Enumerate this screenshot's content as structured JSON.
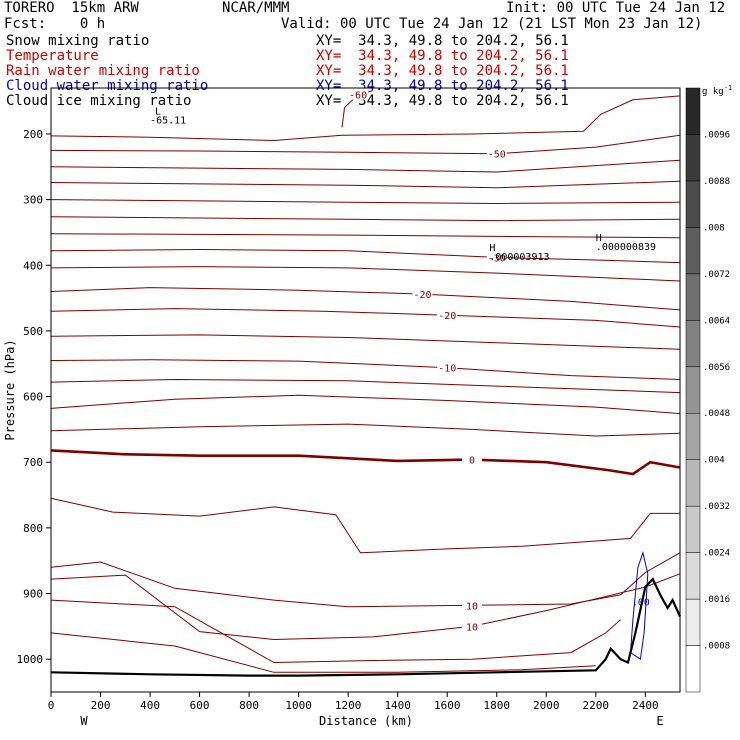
{
  "header": {
    "model": "TORERO  15km ARW",
    "org": "NCAR/MMM",
    "init": "Init: 00 UTC Tue 24 Jan 12",
    "fcst": "Fcst:    0 h",
    "valid": "Valid: 00 UTC Tue 24 Jan 12 (21 LST Mon 23 Jan 12)"
  },
  "fields": [
    {
      "name": "Snow mixing ratio",
      "xy": "XY=  34.3, 49.8 to 204.2, 56.1",
      "color": "#000000"
    },
    {
      "name": "Temperature",
      "xy": "XY=  34.3, 49.8 to 204.2, 56.1",
      "color": "#cc0000"
    },
    {
      "name": "Rain water mixing ratio",
      "xy": "XY=  34.3, 49.8 to 204.2, 56.1",
      "color": "#cc0000"
    },
    {
      "name": "Cloud water mixing ratio",
      "xy": "XY=  34.3, 49.8 to 204.2, 56.1",
      "color": "#0000aa"
    },
    {
      "name": "Cloud ice mixing ratio",
      "xy": "XY=  34.3, 49.8 to 204.2, 56.1",
      "color": "#000000"
    }
  ],
  "colorbar": {
    "unit": "g kg",
    "unit_exp": "-1",
    "labels": [
      ".0008",
      ".0016",
      ".0024",
      ".0032",
      ".004",
      ".0048",
      ".0056",
      ".0064",
      ".0072",
      ".008",
      ".0088",
      ".0096"
    ]
  },
  "chart_data": {
    "type": "contour",
    "xlabel": "Distance (km)",
    "ylabel": "Pressure (hPa)",
    "xlim": [
      0,
      2540
    ],
    "ylim": [
      1050,
      130
    ],
    "x_ticks": [
      0,
      200,
      400,
      600,
      800,
      1000,
      1200,
      1400,
      1600,
      1800,
      2000,
      2200,
      2400
    ],
    "y_ticks": [
      200,
      300,
      400,
      500,
      600,
      700,
      800,
      900,
      1000
    ],
    "x_end_labels": {
      "left": "W",
      "right": "E"
    },
    "temperature_contours": [
      {
        "label": "-60",
        "points": [
          [
            1175,
            190
          ],
          [
            1185,
            160
          ],
          [
            1240,
            140
          ],
          [
            1300,
            134
          ]
        ]
      },
      {
        "label": "",
        "points": [
          [
            0,
            203
          ],
          [
            400,
            205
          ],
          [
            900,
            210
          ],
          [
            1175,
            202
          ],
          [
            1700,
            200
          ],
          [
            2150,
            196
          ],
          [
            2220,
            170
          ],
          [
            2350,
            148
          ],
          [
            2540,
            142
          ]
        ]
      },
      {
        "label": "-50",
        "points": [
          [
            0,
            225
          ],
          [
            600,
            226
          ],
          [
            1200,
            228
          ],
          [
            1800,
            230
          ],
          [
            2200,
            220
          ],
          [
            2540,
            202
          ]
        ]
      },
      {
        "label": "",
        "points": [
          [
            0,
            250
          ],
          [
            600,
            252
          ],
          [
            1200,
            254
          ],
          [
            1800,
            258
          ],
          [
            2540,
            240
          ]
        ]
      },
      {
        "label": "",
        "points": [
          [
            0,
            274
          ],
          [
            600,
            276
          ],
          [
            1200,
            278
          ],
          [
            1800,
            282
          ],
          [
            2540,
            272
          ]
        ]
      },
      {
        "label": "",
        "points": [
          [
            0,
            300
          ],
          [
            600,
            302
          ],
          [
            1200,
            304
          ],
          [
            1800,
            306
          ],
          [
            2540,
            304
          ]
        ]
      },
      {
        "label": "",
        "points": [
          [
            0,
            326
          ],
          [
            600,
            328
          ],
          [
            1200,
            330
          ],
          [
            1800,
            332
          ],
          [
            2540,
            330
          ]
        ]
      },
      {
        "label": "",
        "points": [
          [
            0,
            352
          ],
          [
            600,
            353
          ],
          [
            1200,
            354
          ],
          [
            1800,
            356
          ],
          [
            2540,
            358
          ]
        ]
      },
      {
        "label": "-30",
        "points": [
          [
            0,
            378
          ],
          [
            600,
            376
          ],
          [
            1200,
            378
          ],
          [
            1800,
            388
          ],
          [
            2200,
            392
          ],
          [
            2540,
            396
          ]
        ]
      },
      {
        "label": "",
        "points": [
          [
            0,
            404
          ],
          [
            600,
            402
          ],
          [
            1200,
            404
          ],
          [
            1800,
            412
          ],
          [
            2540,
            424
          ]
        ]
      },
      {
        "label": "-20",
        "points": [
          [
            0,
            440
          ],
          [
            400,
            434
          ],
          [
            1000,
            438
          ],
          [
            1500,
            444
          ],
          [
            2100,
            455
          ],
          [
            2540,
            468
          ]
        ]
      },
      {
        "label": "-20",
        "points": [
          [
            0,
            470
          ],
          [
            500,
            466
          ],
          [
            1100,
            470
          ],
          [
            1600,
            476
          ],
          [
            2200,
            484
          ],
          [
            2540,
            494
          ]
        ]
      },
      {
        "label": "",
        "points": [
          [
            0,
            508
          ],
          [
            600,
            506
          ],
          [
            1200,
            510
          ],
          [
            1800,
            518
          ],
          [
            2540,
            528
          ]
        ]
      },
      {
        "label": "-10",
        "points": [
          [
            0,
            545
          ],
          [
            400,
            544
          ],
          [
            1000,
            546
          ],
          [
            1600,
            556
          ],
          [
            2100,
            568
          ],
          [
            2540,
            574
          ]
        ]
      },
      {
        "label": "",
        "points": [
          [
            0,
            578
          ],
          [
            500,
            574
          ],
          [
            1200,
            576
          ],
          [
            1800,
            584
          ],
          [
            2540,
            594
          ]
        ]
      },
      {
        "label": "",
        "points": [
          [
            0,
            618
          ],
          [
            500,
            604
          ],
          [
            1000,
            598
          ],
          [
            1600,
            606
          ],
          [
            2200,
            616
          ],
          [
            2540,
            626
          ]
        ]
      },
      {
        "label": "",
        "points": [
          [
            0,
            652
          ],
          [
            600,
            646
          ],
          [
            1200,
            642
          ],
          [
            1700,
            650
          ],
          [
            2200,
            660
          ],
          [
            2540,
            656
          ]
        ]
      },
      {
        "label": "0",
        "heavy": true,
        "points": [
          [
            0,
            682
          ],
          [
            300,
            688
          ],
          [
            600,
            690
          ],
          [
            1000,
            690
          ],
          [
            1400,
            698
          ],
          [
            1700,
            696
          ],
          [
            2000,
            700
          ],
          [
            2250,
            712
          ],
          [
            2350,
            718
          ],
          [
            2420,
            700
          ],
          [
            2540,
            708
          ]
        ]
      },
      {
        "label": "",
        "points": [
          [
            0,
            755
          ],
          [
            250,
            776
          ],
          [
            600,
            782
          ],
          [
            900,
            768
          ],
          [
            1150,
            780
          ],
          [
            1250,
            838
          ],
          [
            1600,
            832
          ],
          [
            1900,
            828
          ],
          [
            2200,
            820
          ],
          [
            2340,
            816
          ],
          [
            2420,
            778
          ],
          [
            2540,
            778
          ]
        ]
      },
      {
        "label": "10",
        "points": [
          [
            0,
            860
          ],
          [
            200,
            852
          ],
          [
            500,
            892
          ],
          [
            900,
            910
          ],
          [
            1200,
            920
          ],
          [
            1700,
            918
          ],
          [
            2100,
            916
          ],
          [
            2300,
            902
          ],
          [
            2400,
            868
          ],
          [
            2540,
            838
          ]
        ]
      },
      {
        "label": "10",
        "points": [
          [
            0,
            878
          ],
          [
            300,
            872
          ],
          [
            600,
            958
          ],
          [
            900,
            970
          ],
          [
            1300,
            966
          ],
          [
            1700,
            950
          ],
          [
            2000,
            926
          ],
          [
            2200,
            908
          ],
          [
            2400,
            890
          ],
          [
            2540,
            870
          ]
        ]
      },
      {
        "label": "",
        "points": [
          [
            0,
            910
          ],
          [
            500,
            920
          ],
          [
            900,
            1005
          ],
          [
            1300,
            1002
          ],
          [
            1700,
            1000
          ],
          [
            2100,
            990
          ],
          [
            2240,
            960
          ],
          [
            2300,
            940
          ]
        ]
      },
      {
        "label": "",
        "points": [
          [
            0,
            960
          ],
          [
            500,
            980
          ],
          [
            900,
            1020
          ],
          [
            1400,
            1020
          ],
          [
            1900,
            1016
          ],
          [
            2200,
            1010
          ]
        ]
      }
    ],
    "terrain": {
      "points": [
        [
          0,
          1020
        ],
        [
          400,
          1023
        ],
        [
          800,
          1025
        ],
        [
          1000,
          1025
        ],
        [
          1400,
          1023
        ],
        [
          1800,
          1020
        ],
        [
          2200,
          1017
        ],
        [
          2240,
          1000
        ],
        [
          2260,
          984
        ],
        [
          2300,
          1000
        ],
        [
          2330,
          1005
        ],
        [
          2360,
          960
        ],
        [
          2400,
          890
        ],
        [
          2430,
          878
        ],
        [
          2460,
          902
        ],
        [
          2490,
          922
        ],
        [
          2510,
          910
        ],
        [
          2540,
          935
        ]
      ]
    },
    "cloud_water_contour": {
      "label": ".00",
      "points": [
        [
          2340,
          990
        ],
        [
          2350,
          940
        ],
        [
          2370,
          860
        ],
        [
          2390,
          838
        ],
        [
          2410,
          870
        ],
        [
          2395,
          960
        ],
        [
          2380,
          1000
        ]
      ]
    },
    "annotations": [
      {
        "text": "L",
        "x": 420,
        "y": 170,
        "color": "#000000"
      },
      {
        "text": "-65.11",
        "x": 400,
        "y": 184,
        "color": "#000000"
      },
      {
        "text": "H",
        "x": 1770,
        "y": 378,
        "color": "#000000"
      },
      {
        "text": ".000003913",
        "x": 1770,
        "y": 392,
        "color": "#000000"
      },
      {
        "text": "H",
        "x": 2200,
        "y": 363,
        "color": "#000000"
      },
      {
        "text": ".000000839",
        "x": 2200,
        "y": 377,
        "color": "#000000"
      }
    ]
  }
}
